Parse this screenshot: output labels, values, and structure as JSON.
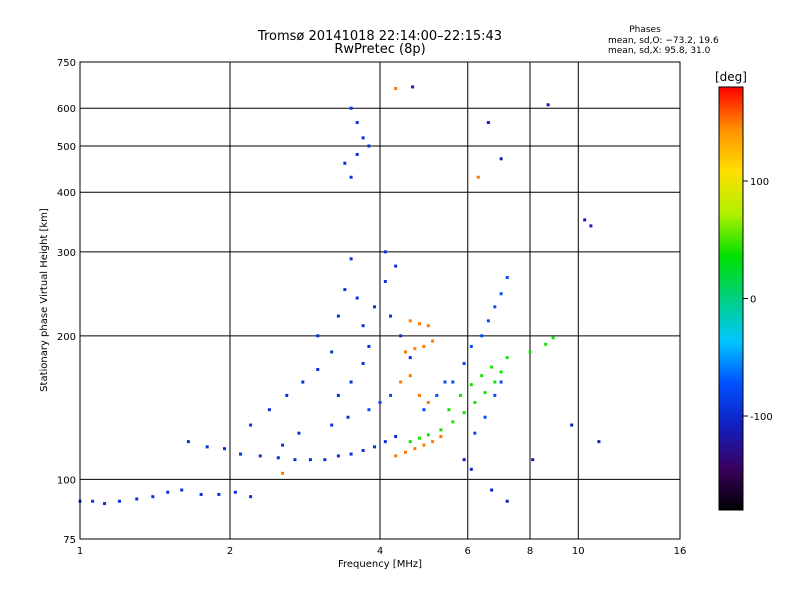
{
  "chart_data": {
    "type": "scatter",
    "title_line1": "Tromsø 20141018 22:14:00–22:15:43",
    "title_line2": "RwPretec (8p)",
    "stats": {
      "heading": "Phases",
      "line_o": "mean, sd,O: −73.2, 19.6",
      "line_x": "mean, sd,X:  95.8, 31.0"
    },
    "xlabel": "Frequency [MHz]",
    "ylabel": "Stationary phase Virtual Height [km]",
    "xscale": "log",
    "yscale": "log",
    "xlim": [
      1,
      16
    ],
    "ylim": [
      75,
      750
    ],
    "xticks": [
      1,
      2,
      4,
      6,
      8,
      10,
      16
    ],
    "yticks": [
      75,
      100,
      200,
      300,
      400,
      500,
      600,
      750
    ],
    "grid": true,
    "colorbar": {
      "label": "[deg]",
      "range": [
        -180,
        180
      ],
      "ticks": [
        100,
        0,
        -100
      ],
      "colormap": [
        "#000000",
        "#3a0060",
        "#1020c0",
        "#0050ff",
        "#00c8ff",
        "#00d080",
        "#00e000",
        "#b0f000",
        "#ffe000",
        "#ff9000",
        "#ff0000"
      ]
    },
    "series": [
      {
        "mode": "O",
        "phase": -95,
        "points": [
          [
            1.0,
            90
          ],
          [
            1.06,
            90
          ],
          [
            1.12,
            89
          ],
          [
            1.2,
            90
          ],
          [
            1.3,
            91
          ],
          [
            1.4,
            92
          ],
          [
            1.5,
            94
          ],
          [
            1.6,
            95
          ],
          [
            1.75,
            93
          ],
          [
            1.9,
            93
          ],
          [
            2.05,
            94
          ],
          [
            2.2,
            92
          ],
          [
            1.65,
            120
          ],
          [
            1.8,
            117
          ],
          [
            1.95,
            116
          ],
          [
            2.1,
            113
          ],
          [
            2.3,
            112
          ],
          [
            2.5,
            111
          ],
          [
            2.7,
            110
          ],
          [
            2.9,
            110
          ],
          [
            3.1,
            110
          ],
          [
            3.3,
            112
          ],
          [
            3.5,
            113
          ],
          [
            3.7,
            115
          ],
          [
            3.9,
            117
          ],
          [
            4.1,
            120
          ],
          [
            4.3,
            123
          ],
          [
            2.2,
            130
          ],
          [
            2.4,
            140
          ],
          [
            2.6,
            150
          ],
          [
            2.8,
            160
          ],
          [
            3.0,
            170
          ],
          [
            3.0,
            200
          ],
          [
            3.2,
            185
          ],
          [
            3.3,
            220
          ],
          [
            3.4,
            250
          ],
          [
            3.5,
            290
          ],
          [
            3.6,
            240
          ],
          [
            3.7,
            210
          ],
          [
            3.8,
            190
          ],
          [
            3.9,
            230
          ],
          [
            4.1,
            260
          ],
          [
            4.2,
            220
          ],
          [
            4.4,
            200
          ],
          [
            4.6,
            180
          ],
          [
            3.3,
            150
          ],
          [
            3.5,
            160
          ],
          [
            3.7,
            175
          ],
          [
            3.4,
            460
          ],
          [
            3.5,
            430
          ],
          [
            3.6,
            480
          ],
          [
            3.7,
            520
          ],
          [
            3.8,
            500
          ],
          [
            3.5,
            600
          ],
          [
            3.6,
            560
          ],
          [
            4.3,
            280
          ],
          [
            4.1,
            300
          ],
          [
            3.2,
            130
          ],
          [
            3.45,
            135
          ],
          [
            2.75,
            125
          ],
          [
            2.55,
            118
          ]
        ]
      },
      {
        "mode": "X",
        "phase": 40,
        "points": [
          [
            4.6,
            120
          ],
          [
            4.8,
            122
          ],
          [
            5.0,
            124
          ],
          [
            5.3,
            127
          ],
          [
            5.6,
            132
          ],
          [
            5.9,
            138
          ],
          [
            6.2,
            145
          ],
          [
            6.5,
            152
          ],
          [
            6.8,
            160
          ],
          [
            7.0,
            168
          ],
          [
            5.5,
            140
          ],
          [
            5.8,
            150
          ],
          [
            6.1,
            158
          ],
          [
            6.4,
            165
          ],
          [
            6.7,
            172
          ],
          [
            7.2,
            180
          ],
          [
            8.0,
            185
          ],
          [
            8.6,
            192
          ],
          [
            8.9,
            198
          ]
        ]
      },
      {
        "mode": "X",
        "phase": 150,
        "points": [
          [
            4.3,
            112
          ],
          [
            4.5,
            114
          ],
          [
            4.7,
            116
          ],
          [
            4.9,
            118
          ],
          [
            5.1,
            120
          ],
          [
            5.3,
            123
          ],
          [
            4.5,
            185
          ],
          [
            4.7,
            188
          ],
          [
            4.9,
            190
          ],
          [
            5.1,
            195
          ],
          [
            4.6,
            215
          ],
          [
            4.8,
            212
          ],
          [
            5.0,
            210
          ],
          [
            4.4,
            160
          ],
          [
            4.6,
            165
          ],
          [
            4.8,
            150
          ],
          [
            5.0,
            145
          ],
          [
            4.3,
            660
          ],
          [
            6.3,
            430
          ],
          [
            2.55,
            103
          ]
        ]
      },
      {
        "mode": "O",
        "phase": -75,
        "points": [
          [
            6.2,
            125
          ],
          [
            6.5,
            135
          ],
          [
            6.8,
            150
          ],
          [
            7.0,
            160
          ],
          [
            5.6,
            160
          ],
          [
            5.9,
            175
          ],
          [
            6.1,
            190
          ],
          [
            6.4,
            200
          ],
          [
            6.6,
            215
          ],
          [
            6.8,
            230
          ],
          [
            7.0,
            245
          ],
          [
            7.2,
            265
          ],
          [
            4.9,
            140
          ],
          [
            5.2,
            150
          ],
          [
            5.4,
            160
          ],
          [
            3.8,
            140
          ],
          [
            4.0,
            145
          ],
          [
            4.2,
            150
          ]
        ]
      },
      {
        "mode": "O",
        "phase": -110,
        "points": [
          [
            6.7,
            95
          ],
          [
            7.2,
            90
          ],
          [
            8.7,
            610
          ],
          [
            10.3,
            350
          ],
          [
            10.6,
            340
          ],
          [
            11.0,
            120
          ],
          [
            4.65,
            665
          ],
          [
            6.6,
            560
          ],
          [
            7.0,
            470
          ],
          [
            8.1,
            110
          ],
          [
            9.7,
            130
          ],
          [
            5.9,
            110
          ],
          [
            6.1,
            105
          ]
        ]
      }
    ]
  }
}
